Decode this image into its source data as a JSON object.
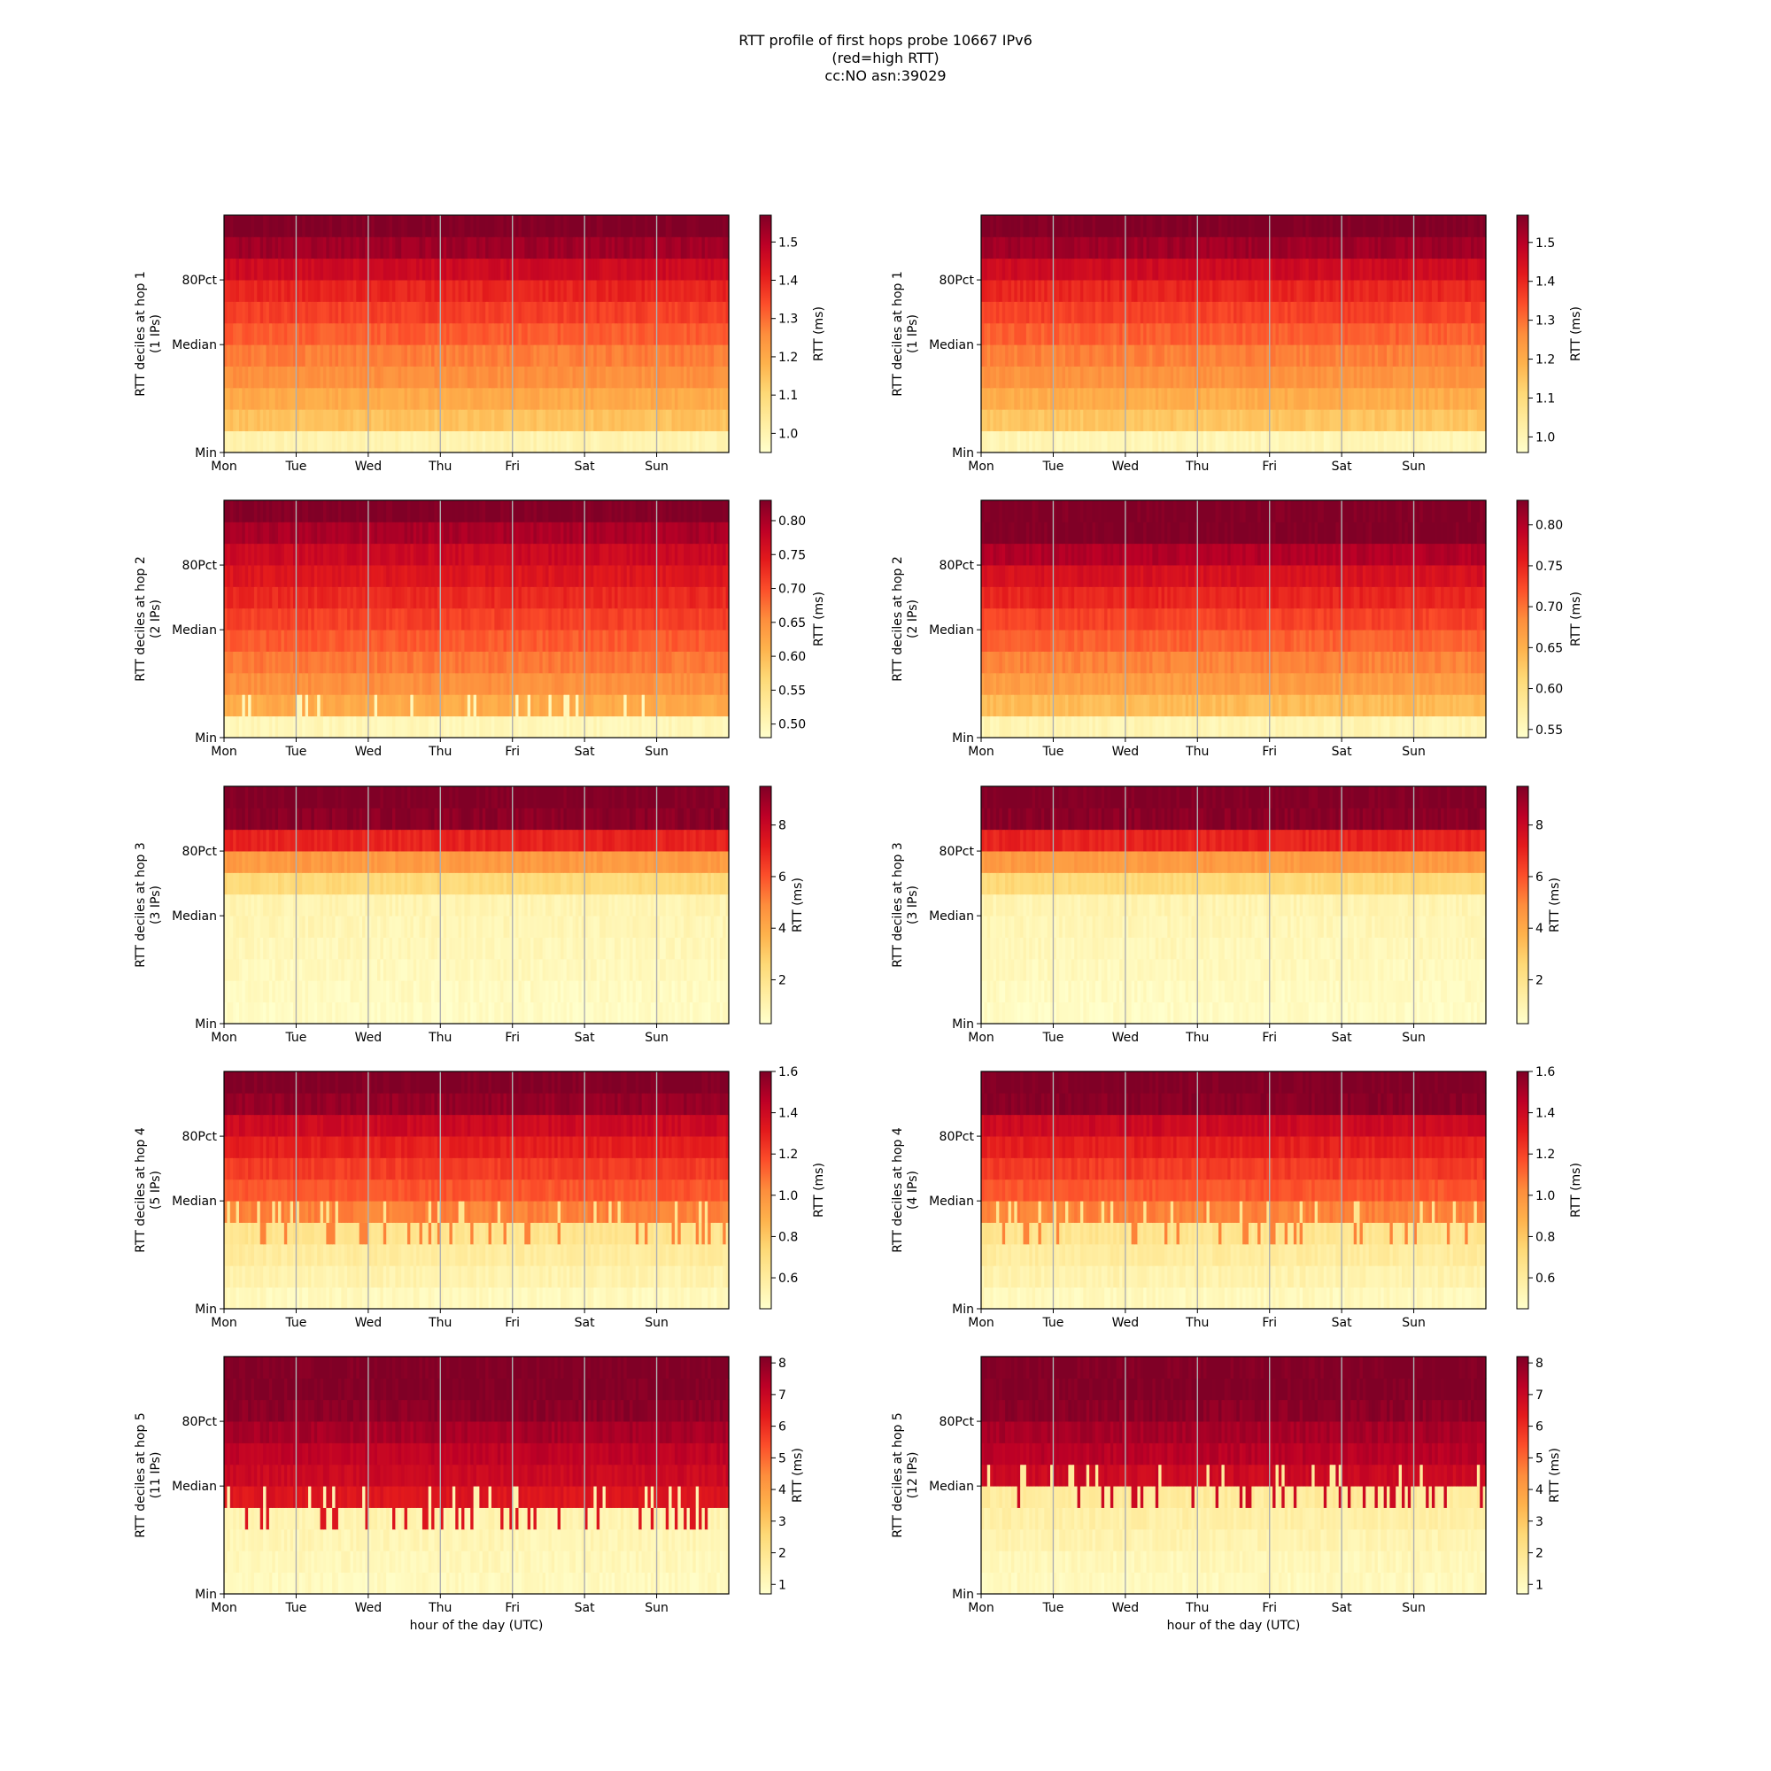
{
  "figure": {
    "title_lines": [
      "RTT profile of first hops probe 10667 IPv6",
      "(red=high RTT)",
      "cc:NO asn:39029"
    ],
    "xlabel": "hour of the day (UTC)"
  },
  "chart_data": {
    "type": "heatmap",
    "title": "RTT profile of first hops probe 10667 IPv6 (red=high RTT) cc:NO asn:39029",
    "colormap": "YlOrRd",
    "x_ticks": [
      "Mon",
      "Tue",
      "Wed",
      "Thu",
      "Fri",
      "Sat",
      "Sun"
    ],
    "x_range_days": [
      0,
      7
    ],
    "y_ticks": [
      "Min",
      "Median",
      "80Pct"
    ],
    "y_tick_deciles": [
      0,
      5,
      8
    ],
    "n_deciles": 11,
    "n_time_bins": 168,
    "xlabel": "hour of the day (UTC)",
    "colorbar_label": "RTT (ms)",
    "grid": "vertical lines at day boundaries",
    "panels": [
      {
        "hop": 1,
        "ips": "(1 IPs)",
        "ylabel": "RTT deciles at hop 1",
        "column": "left",
        "vmin": 0.95,
        "vmax": 1.57,
        "cbar_ticks": [
          1.0,
          1.1,
          1.2,
          1.3,
          1.4,
          1.5
        ],
        "decile_rtt_ms": [
          1.0,
          1.15,
          1.2,
          1.25,
          1.28,
          1.32,
          1.36,
          1.4,
          1.46,
          1.53,
          1.57
        ]
      },
      {
        "hop": 1,
        "ips": "(1 IPs)",
        "ylabel": "RTT deciles at hop 1",
        "column": "right",
        "vmin": 0.96,
        "vmax": 1.57,
        "cbar_ticks": [
          1.0,
          1.1,
          1.2,
          1.3,
          1.4,
          1.5
        ],
        "decile_rtt_ms": [
          1.0,
          1.15,
          1.2,
          1.25,
          1.28,
          1.32,
          1.36,
          1.4,
          1.46,
          1.53,
          1.57
        ]
      },
      {
        "hop": 2,
        "ips": "(2 IPs)",
        "ylabel": "RTT deciles at hop 2",
        "column": "left",
        "vmin": 0.48,
        "vmax": 0.83,
        "cbar_ticks": [
          0.5,
          0.55,
          0.6,
          0.65,
          0.7,
          0.75,
          0.8
        ],
        "decile_rtt_ms": [
          0.5,
          0.62,
          0.65,
          0.67,
          0.69,
          0.71,
          0.73,
          0.75,
          0.77,
          0.8,
          0.83
        ]
      },
      {
        "hop": 2,
        "ips": "(2 IPs)",
        "ylabel": "RTT deciles at hop 2",
        "column": "right",
        "vmin": 0.54,
        "vmax": 0.83,
        "cbar_ticks": [
          0.55,
          0.6,
          0.65,
          0.7,
          0.75,
          0.8
        ],
        "decile_rtt_ms": [
          0.56,
          0.64,
          0.67,
          0.69,
          0.71,
          0.73,
          0.75,
          0.77,
          0.8,
          0.83,
          0.83
        ]
      },
      {
        "hop": 3,
        "ips": "(3 IPs)",
        "ylabel": "RTT deciles at hop 3",
        "column": "left",
        "vmin": 0.3,
        "vmax": 9.5,
        "cbar_ticks": [
          2,
          4,
          6,
          8
        ],
        "decile_rtt_ms": [
          0.5,
          0.6,
          0.7,
          0.8,
          0.9,
          1.0,
          2.5,
          4.5,
          7.0,
          9.3,
          9.5
        ]
      },
      {
        "hop": 3,
        "ips": "(3 IPs)",
        "ylabel": "RTT deciles at hop 3",
        "column": "right",
        "vmin": 0.3,
        "vmax": 9.5,
        "cbar_ticks": [
          2,
          4,
          6,
          8
        ],
        "decile_rtt_ms": [
          0.5,
          0.6,
          0.7,
          0.8,
          0.9,
          1.0,
          2.5,
          4.5,
          7.0,
          9.3,
          9.5
        ]
      },
      {
        "hop": 4,
        "ips": "(5 IPs)",
        "ylabel": "RTT deciles at hop 4",
        "column": "left",
        "vmin": 0.45,
        "vmax": 1.6,
        "cbar_ticks": [
          0.6,
          0.8,
          1.0,
          1.2,
          1.4,
          1.6
        ],
        "decile_rtt_ms": [
          0.5,
          0.55,
          0.6,
          0.65,
          1.05,
          1.15,
          1.22,
          1.3,
          1.4,
          1.55,
          1.6
        ]
      },
      {
        "hop": 4,
        "ips": "(4 IPs)",
        "ylabel": "RTT deciles at hop 4",
        "column": "right",
        "vmin": 0.45,
        "vmax": 1.6,
        "cbar_ticks": [
          0.6,
          0.8,
          1.0,
          1.2,
          1.4,
          1.6
        ],
        "decile_rtt_ms": [
          0.5,
          0.55,
          0.6,
          0.65,
          1.05,
          1.15,
          1.22,
          1.3,
          1.4,
          1.58,
          1.6
        ]
      },
      {
        "hop": 5,
        "ips": "(11 IPs)",
        "ylabel": "RTT deciles at hop 5",
        "column": "left",
        "vmin": 0.7,
        "vmax": 8.2,
        "cbar_ticks": [
          1,
          2,
          3,
          4,
          5,
          6,
          7,
          8
        ],
        "decile_rtt_ms": [
          1.0,
          1.1,
          1.2,
          1.3,
          6.5,
          6.9,
          7.2,
          7.6,
          8.0,
          8.2,
          8.2
        ]
      },
      {
        "hop": 5,
        "ips": "(12 IPs)",
        "ylabel": "RTT deciles at hop 5",
        "column": "right",
        "vmin": 0.7,
        "vmax": 8.2,
        "cbar_ticks": [
          1,
          2,
          3,
          4,
          5,
          6,
          7,
          8
        ],
        "decile_rtt_ms": [
          1.0,
          1.1,
          1.3,
          1.5,
          1.7,
          6.9,
          7.3,
          7.6,
          8.0,
          8.2,
          8.2
        ]
      }
    ]
  }
}
